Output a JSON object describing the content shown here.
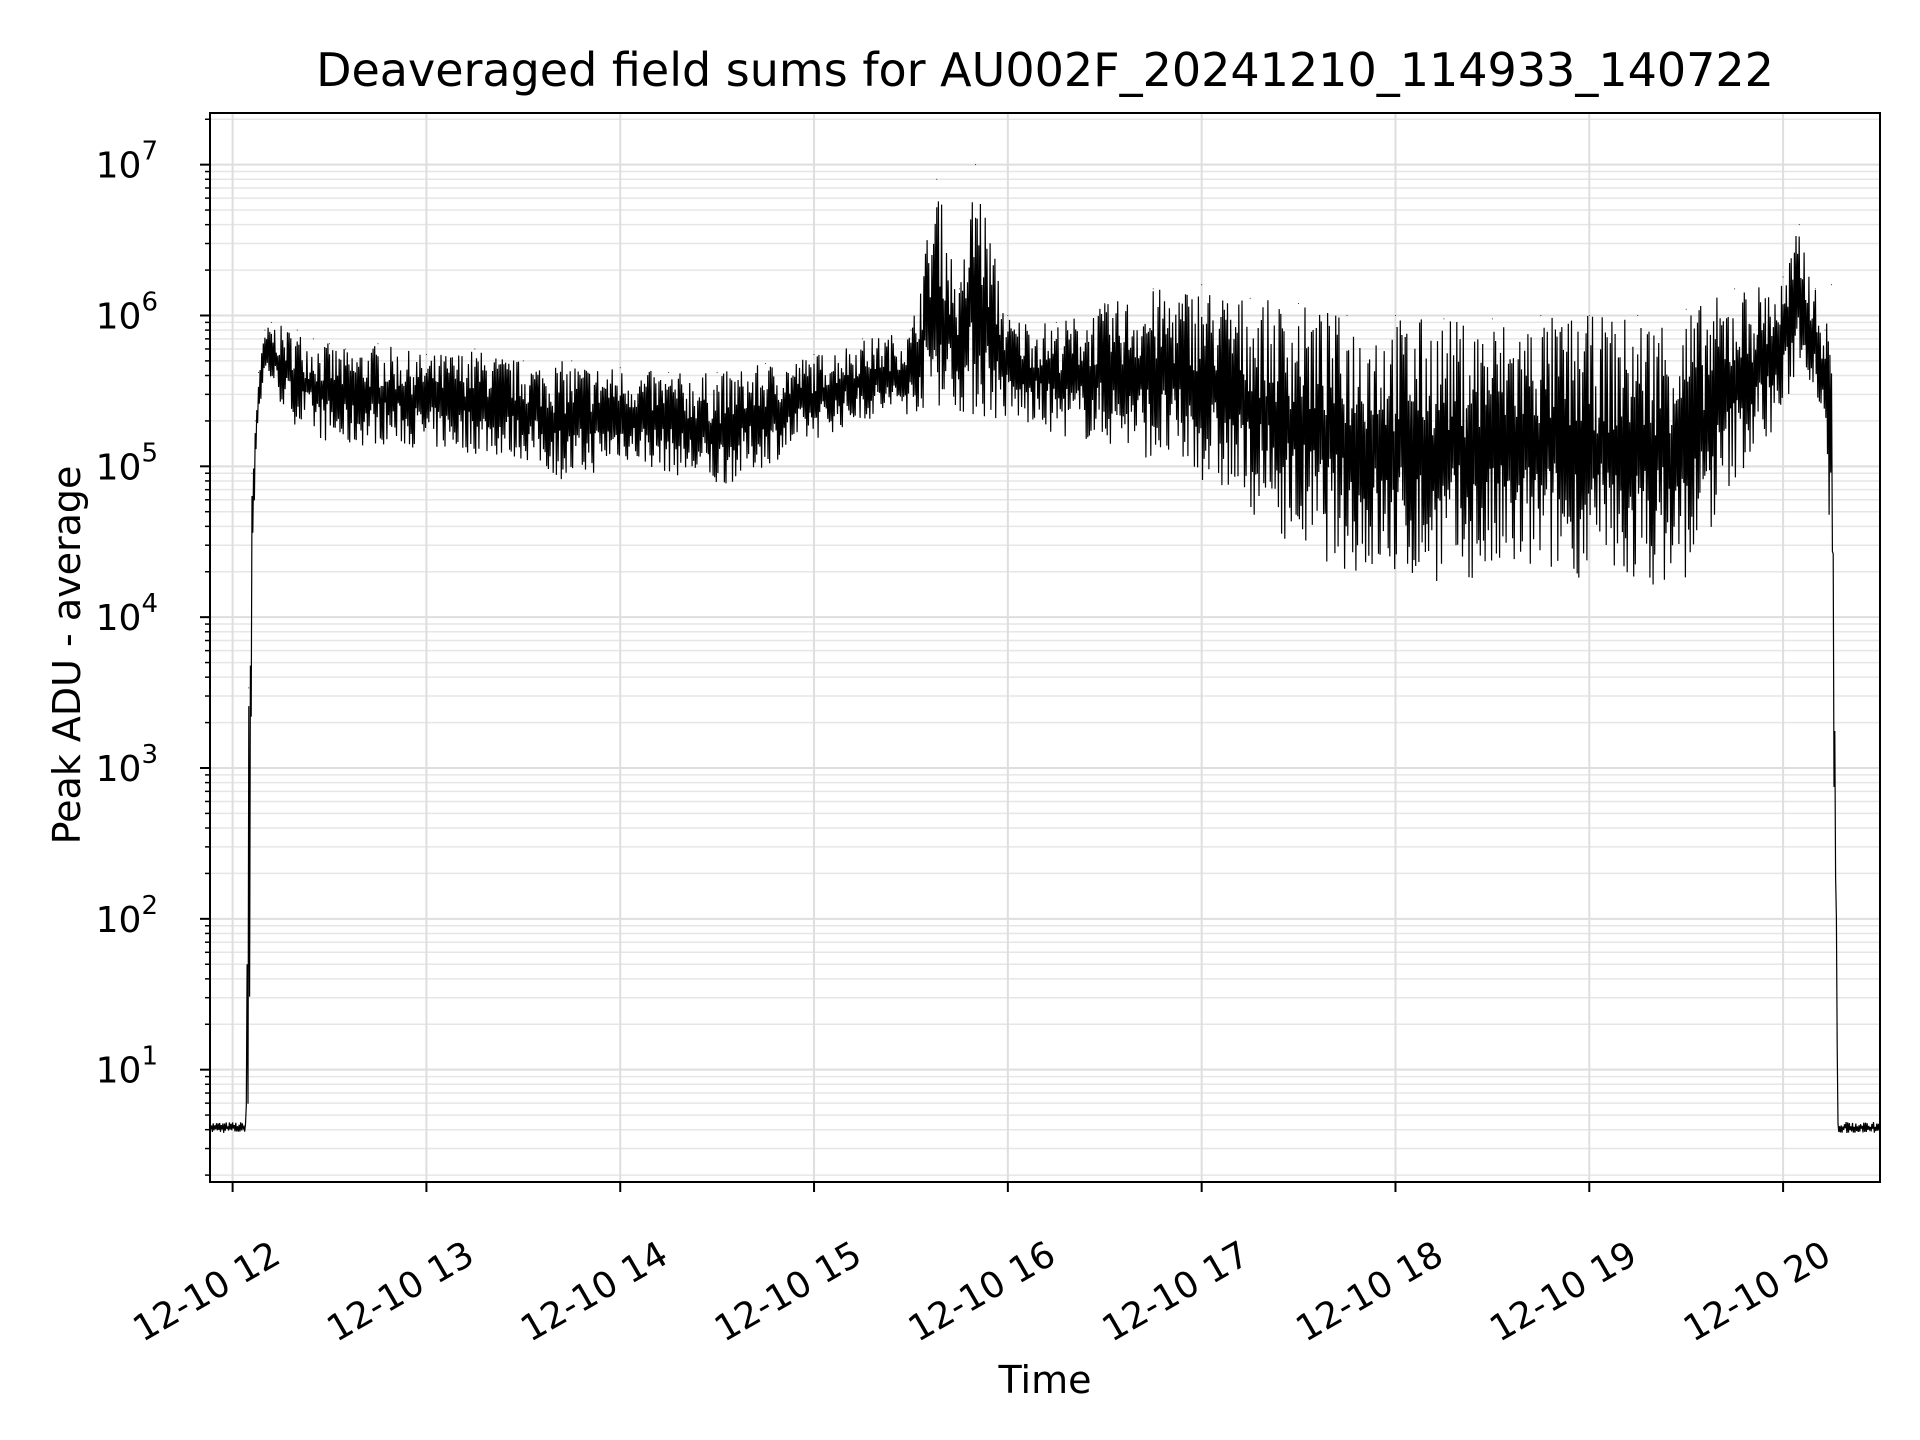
{
  "chart_data": {
    "type": "line",
    "title": "Deaveraged field sums for AU002F_20241210_114933_140722",
    "xlabel": "Time",
    "ylabel": "Peak ADU - average",
    "y_scale": "log",
    "ylim": [
      1.8,
      22000000
    ],
    "xlim": [
      "2024-12-10 11:53",
      "2024-12-10 20:30"
    ],
    "grid": "on (major and minor)",
    "line_color": "#000000",
    "x_ticks": [
      {
        "value": "2024-12-10 12:00",
        "label": "12-10 12"
      },
      {
        "value": "2024-12-10 13:00",
        "label": "12-10 13"
      },
      {
        "value": "2024-12-10 14:00",
        "label": "12-10 14"
      },
      {
        "value": "2024-12-10 15:00",
        "label": "12-10 15"
      },
      {
        "value": "2024-12-10 16:00",
        "label": "12-10 16"
      },
      {
        "value": "2024-12-10 17:00",
        "label": "12-10 17"
      },
      {
        "value": "2024-12-10 18:00",
        "label": "12-10 18"
      },
      {
        "value": "2024-12-10 19:00",
        "label": "12-10 19"
      },
      {
        "value": "2024-12-10 20:00",
        "label": "12-10 20"
      }
    ],
    "y_ticks": [
      {
        "value": 10,
        "base": "10",
        "exp": "1"
      },
      {
        "value": 100,
        "base": "10",
        "exp": "2"
      },
      {
        "value": 1000,
        "base": "10",
        "exp": "3"
      },
      {
        "value": 10000,
        "base": "10",
        "exp": "4"
      },
      {
        "value": 100000,
        "base": "10",
        "exp": "5"
      },
      {
        "value": 1000000,
        "base": "10",
        "exp": "6"
      },
      {
        "value": 10000000,
        "base": "10",
        "exp": "7"
      }
    ],
    "series": [
      {
        "x": [
          "2024-12-10 11:53",
          "2024-12-10 12:04",
          "2024-12-10 12:05",
          "2024-12-10 12:06",
          "2024-12-10 12:07",
          "2024-12-10 12:08",
          "2024-12-10 12:10",
          "2024-12-10 12:12",
          "2024-12-10 12:15",
          "2024-12-10 12:20",
          "2024-12-10 12:25",
          "2024-12-10 12:30",
          "2024-12-10 12:35",
          "2024-12-10 12:45",
          "2024-12-10 13:00",
          "2024-12-10 13:15",
          "2024-12-10 13:30",
          "2024-12-10 13:45",
          "2024-12-10 14:00",
          "2024-12-10 14:15",
          "2024-12-10 14:30",
          "2024-12-10 14:45",
          "2024-12-10 15:00",
          "2024-12-10 15:15",
          "2024-12-10 15:30",
          "2024-12-10 15:38",
          "2024-12-10 15:45",
          "2024-12-10 15:50",
          "2024-12-10 16:00",
          "2024-12-10 16:15",
          "2024-12-10 16:30",
          "2024-12-10 16:45",
          "2024-12-10 17:00",
          "2024-12-10 17:15",
          "2024-12-10 17:30",
          "2024-12-10 17:45",
          "2024-12-10 18:00",
          "2024-12-10 18:15",
          "2024-12-10 18:30",
          "2024-12-10 18:45",
          "2024-12-10 19:00",
          "2024-12-10 19:15",
          "2024-12-10 19:30",
          "2024-12-10 19:45",
          "2024-12-10 20:00",
          "2024-12-10 20:05",
          "2024-12-10 20:10",
          "2024-12-10 20:13",
          "2024-12-10 20:15",
          "2024-12-10 20:17",
          "2024-12-10 20:30"
        ],
        "peak": [
          4.5,
          4.5,
          3400,
          90000,
          200000,
          420000,
          800000,
          900000,
          850000,
          800000,
          700000,
          650000,
          600000,
          650000,
          550000,
          600000,
          500000,
          500000,
          450000,
          420000,
          420000,
          480000,
          550000,
          700000,
          800000,
          8000000,
          1500000,
          10000000,
          1000000,
          900000,
          1200000,
          1500000,
          1600000,
          1300000,
          1200000,
          1000000,
          1000000,
          950000,
          950000,
          1000000,
          1000000,
          1000000,
          1100000,
          1500000,
          1800000,
          4000000,
          1500000,
          800000,
          1600000,
          4.5,
          4.5
        ],
        "trough": [
          3.8,
          3.8,
          3.8,
          9000,
          100000,
          200000,
          400000,
          350000,
          250000,
          180000,
          160000,
          140000,
          130000,
          140000,
          130000,
          120000,
          110000,
          75000,
          110000,
          90000,
          70000,
          100000,
          150000,
          200000,
          220000,
          250000,
          230000,
          200000,
          200000,
          160000,
          140000,
          110000,
          80000,
          50000,
          28000,
          20000,
          17000,
          17000,
          17000,
          19000,
          18000,
          16000,
          17000,
          80000,
          200000,
          500000,
          300000,
          200000,
          15000,
          3.8,
          3.8
        ]
      }
    ]
  }
}
